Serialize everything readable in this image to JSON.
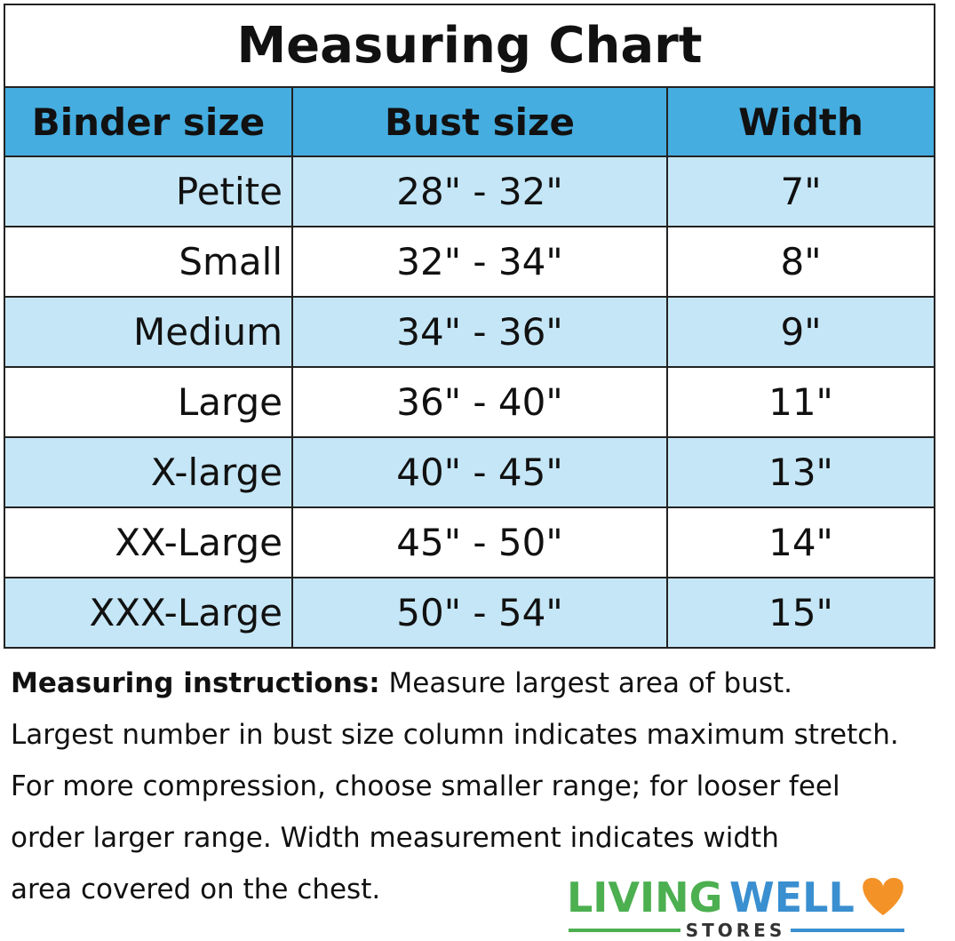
{
  "table": {
    "title": "Measuring Chart",
    "header": [
      "Binder size",
      "Bust size",
      "Width"
    ],
    "rows": [
      [
        "Petite",
        "28\" - 32\"",
        "7\""
      ],
      [
        "Small",
        "32\" - 34\"",
        "8\""
      ],
      [
        "Medium",
        "34\" - 36\"",
        "9\""
      ],
      [
        "Large",
        "36\" - 40\"",
        "11\""
      ],
      [
        "X-large",
        "40\" - 45\"",
        "13\""
      ],
      [
        "XX-Large",
        "45\" - 50\"",
        "14\""
      ],
      [
        "XXX-Large",
        "50\" - 54\"",
        "15\""
      ]
    ]
  },
  "instructions": {
    "label": "Measuring instructions:",
    "lines": [
      "Measure largest area of bust.",
      "Largest number in bust size column indicates maximum stretch.",
      "For more compression, choose smaller range; for looser feel",
      "order larger range. Width measurement indicates width",
      "area covered on the chest."
    ]
  },
  "logo": {
    "word1": "LIVING",
    "word2": "WELL",
    "sub": "STORES"
  }
}
